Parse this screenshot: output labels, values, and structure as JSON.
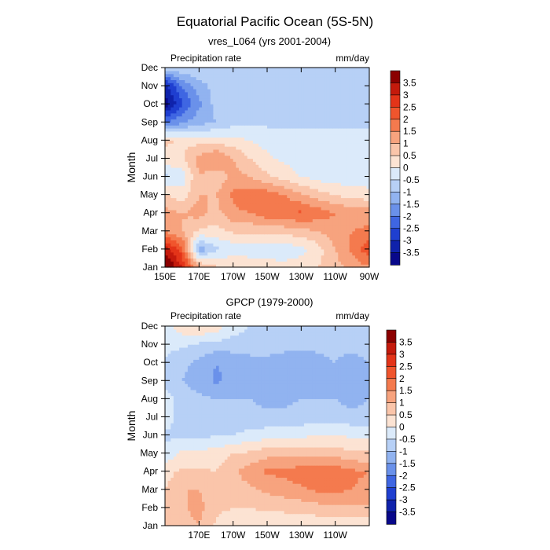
{
  "chart_data": {
    "type": "heatmap",
    "title": "Equatorial Pacific Ocean (5S-5N)",
    "colorbar": {
      "labels": [
        "3.5",
        "3",
        "2.5",
        "2",
        "1.5",
        "1",
        "0.5",
        "0",
        "-0.5",
        "-1",
        "-1.5",
        "-2",
        "-2.5",
        "-3",
        "-3.5"
      ],
      "colors": [
        "#8b0000",
        "#c41a0c",
        "#e33419",
        "#f0552d",
        "#f47a4e",
        "#f7a37e",
        "#fac5aa",
        "#fce3d3",
        "#dbeafa",
        "#b7d0f6",
        "#91b3f0",
        "#6a91ea",
        "#3f66e2",
        "#1f3fd0",
        "#0f22ab",
        "#08088a"
      ]
    },
    "panels": [
      {
        "id": "top",
        "subtitle": "vres_L064 (yrs 2001-2004)",
        "left_string": "Precipitation rate",
        "right_string": "mm/day",
        "ylabel": "Month",
        "xlim": [
          150,
          270
        ],
        "x_tick_labels": [
          "150E",
          "170E",
          "170W",
          "150W",
          "130W",
          "110W",
          "90W"
        ],
        "x_tick_values": [
          150,
          170,
          190,
          210,
          230,
          250,
          270
        ],
        "y_tick_labels": [
          "Jan",
          "Feb",
          "Mar",
          "Apr",
          "May",
          "Jun",
          "Jul",
          "Aug",
          "Sep",
          "Oct",
          "Nov",
          "Dec"
        ],
        "lon_nodes": [
          150,
          160,
          170,
          180,
          190,
          200,
          210,
          220,
          230,
          240,
          250,
          260,
          270
        ],
        "values": [
          [
            4.2,
            3.0,
            1.2,
            0.6,
            0.5,
            0.4,
            0.3,
            0.2,
            0.3,
            0.5,
            0.8,
            1.2,
            1.4
          ],
          [
            3.4,
            2.2,
            -1.4,
            -0.6,
            -0.3,
            -0.3,
            -0.4,
            -0.3,
            -0.2,
            0.3,
            1.0,
            1.6,
            2.4
          ],
          [
            1.4,
            1.0,
            0.4,
            0.3,
            0.6,
            0.6,
            0.7,
            0.7,
            0.8,
            1.0,
            1.3,
            1.5,
            1.6
          ],
          [
            1.2,
            1.0,
            1.2,
            0.8,
            1.4,
            1.5,
            1.8,
            1.9,
            2.1,
            1.8,
            1.5,
            1.3,
            1.3
          ],
          [
            0.6,
            0.2,
            1.0,
            1.0,
            1.6,
            1.8,
            1.8,
            1.5,
            1.1,
            0.7,
            0.5,
            0.3,
            0.2
          ],
          [
            -0.6,
            -0.3,
            1.0,
            0.6,
            1.2,
            1.0,
            0.6,
            0.3,
            0.0,
            -0.2,
            -0.3,
            -0.3,
            -0.3
          ],
          [
            0.3,
            0.4,
            1.2,
            1.6,
            1.0,
            0.5,
            0.1,
            -0.1,
            -0.3,
            -0.3,
            -0.3,
            -0.3,
            -0.3
          ],
          [
            0.6,
            0.4,
            0.3,
            0.3,
            0.2,
            0.0,
            -0.2,
            -0.3,
            -0.3,
            -0.3,
            -0.3,
            -0.3,
            -0.3
          ],
          [
            -2.0,
            -1.6,
            -1.2,
            -1.0,
            -0.7,
            -0.6,
            -0.6,
            -0.6,
            -0.6,
            -0.6,
            -0.6,
            -0.6,
            -0.6
          ],
          [
            -3.8,
            -2.6,
            -1.6,
            -0.8,
            -0.6,
            -0.6,
            -0.7,
            -0.6,
            -0.6,
            -0.6,
            -0.6,
            -0.6,
            -0.6
          ],
          [
            -3.2,
            -2.0,
            -1.2,
            -0.8,
            -0.6,
            -0.8,
            -0.7,
            -0.6,
            -0.6,
            -0.6,
            -0.6,
            -0.6,
            -0.6
          ],
          [
            -0.8,
            -0.6,
            -0.6,
            -0.7,
            -0.6,
            -0.6,
            -0.6,
            -0.6,
            -0.6,
            -0.6,
            -0.6,
            -0.6,
            -0.6
          ]
        ]
      },
      {
        "id": "bottom",
        "subtitle": "GPCP (1979-2000)",
        "left_string": "Precipitation rate",
        "right_string": "mm/day",
        "ylabel": "Month",
        "xlim": [
          150,
          270
        ],
        "x_tick_labels": [
          "170E",
          "170W",
          "150W",
          "130W",
          "110W"
        ],
        "x_tick_values": [
          170,
          190,
          210,
          230,
          250
        ],
        "y_tick_labels": [
          "Jan",
          "Feb",
          "Mar",
          "Apr",
          "May",
          "Jun",
          "Jul",
          "Aug",
          "Sep",
          "Oct",
          "Nov",
          "Dec"
        ],
        "lon_nodes": [
          150,
          160,
          170,
          180,
          190,
          200,
          210,
          220,
          230,
          240,
          250,
          260,
          270
        ],
        "values": [
          [
            0.7,
            0.8,
            1.0,
            0.4,
            0.2,
            0.2,
            0.2,
            0.2,
            0.1,
            0.1,
            0.2,
            0.2,
            0.2
          ],
          [
            0.5,
            0.9,
            1.2,
            0.6,
            0.5,
            0.5,
            0.6,
            0.6,
            0.7,
            0.8,
            0.9,
            0.9,
            0.9
          ],
          [
            0.5,
            1.0,
            1.0,
            0.6,
            0.7,
            0.9,
            1.1,
            1.3,
            1.4,
            1.6,
            1.6,
            1.5,
            1.3
          ],
          [
            0.3,
            0.6,
            0.6,
            0.5,
            0.9,
            1.3,
            1.6,
            1.6,
            1.8,
            1.8,
            1.8,
            1.6,
            1.5
          ],
          [
            -0.4,
            0.2,
            0.2,
            0.2,
            0.5,
            0.6,
            0.8,
            0.8,
            0.8,
            0.8,
            0.8,
            0.6,
            0.6
          ],
          [
            -0.6,
            -0.6,
            -0.7,
            -0.5,
            -0.5,
            -0.3,
            -0.2,
            -0.2,
            -0.1,
            0.0,
            0.0,
            -0.1,
            -0.1
          ],
          [
            -0.2,
            -0.8,
            -0.8,
            -0.8,
            -0.9,
            -0.9,
            -0.9,
            -0.9,
            -0.8,
            -0.8,
            -0.8,
            -0.8,
            -0.8
          ],
          [
            -0.2,
            -0.8,
            -0.9,
            -1.0,
            -1.0,
            -1.0,
            -1.1,
            -1.1,
            -1.0,
            -1.0,
            -1.0,
            -1.2,
            -1.0
          ],
          [
            -0.8,
            -1.0,
            -1.2,
            -1.6,
            -1.3,
            -1.1,
            -1.2,
            -1.3,
            -1.3,
            -1.2,
            -1.1,
            -1.2,
            -1.0
          ],
          [
            -0.6,
            -0.9,
            -1.1,
            -1.5,
            -1.4,
            -1.2,
            -1.2,
            -1.3,
            -1.3,
            -1.1,
            -1.0,
            -1.2,
            -1.0
          ],
          [
            -0.3,
            -0.4,
            -0.6,
            -0.7,
            -0.7,
            -0.7,
            -0.7,
            -0.8,
            -0.9,
            -0.9,
            -0.9,
            -0.8,
            -0.8
          ],
          [
            -0.3,
            0.3,
            0.5,
            0.3,
            -0.3,
            -0.5,
            -0.6,
            -0.7,
            -0.7,
            -0.7,
            -0.7,
            -0.7,
            -0.7
          ]
        ]
      }
    ]
  }
}
